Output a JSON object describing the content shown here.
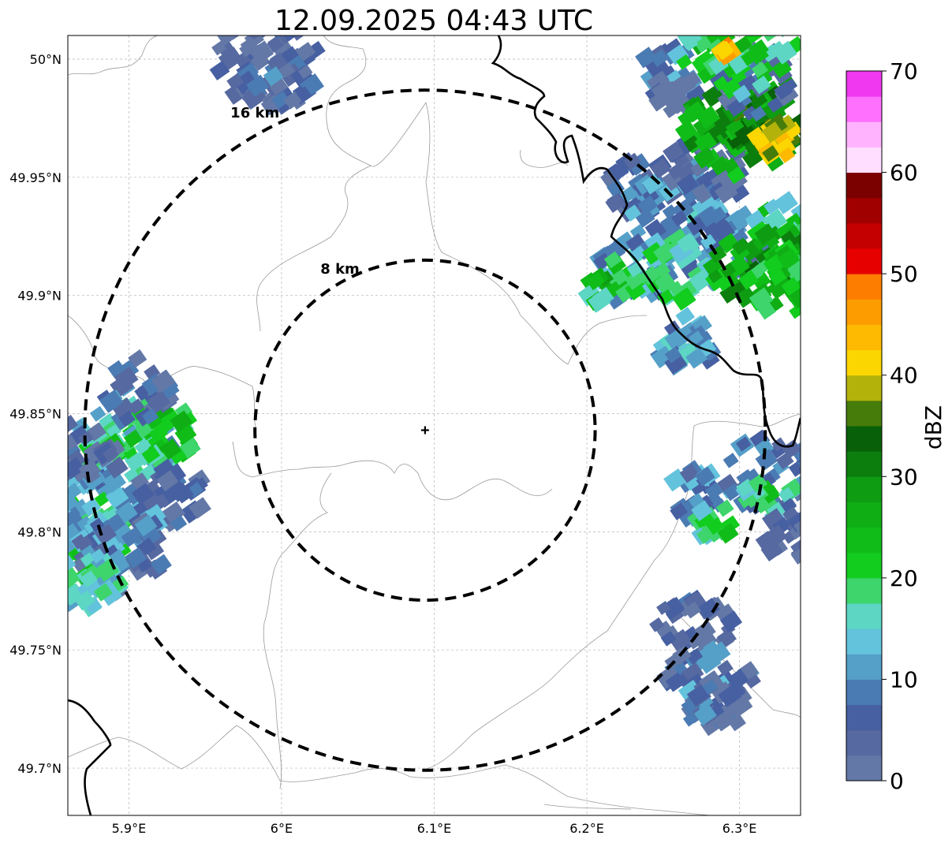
{
  "title": "12.09.2025 04:43 UTC",
  "map": {
    "lon_range": [
      5.86,
      6.34
    ],
    "lat_range": [
      49.68,
      50.01
    ],
    "lon_ticks": [
      {
        "value": 5.9,
        "label": "5.9°E"
      },
      {
        "value": 6.0,
        "label": "6°E"
      },
      {
        "value": 6.1,
        "label": "6.1°E"
      },
      {
        "value": 6.2,
        "label": "6.2°E"
      },
      {
        "value": 6.3,
        "label": "6.3°E"
      }
    ],
    "lat_ticks": [
      {
        "value": 49.7,
        "label": "49.7°N"
      },
      {
        "value": 49.75,
        "label": "49.75°N"
      },
      {
        "value": 49.8,
        "label": "49.8°N"
      },
      {
        "value": 49.85,
        "label": "49.85°N"
      },
      {
        "value": 49.9,
        "label": "49.9°N"
      },
      {
        "value": 49.95,
        "label": "49.95°N"
      },
      {
        "value": 50.0,
        "label": "50°N"
      }
    ],
    "center": {
      "lon": 6.094,
      "lat": 49.843
    },
    "rings": [
      {
        "radius_km": 8,
        "label": "8 km"
      },
      {
        "radius_km": 16,
        "label": "16 km"
      }
    ],
    "precip_cells": [
      {
        "lon": 5.89,
        "lat": 49.835,
        "dbz": 18,
        "size": 0.9
      },
      {
        "lon": 5.915,
        "lat": 49.84,
        "dbz": 24,
        "size": 0.7
      },
      {
        "lon": 5.905,
        "lat": 49.86,
        "dbz": 8,
        "size": 0.6
      },
      {
        "lon": 5.925,
        "lat": 49.815,
        "dbz": 7,
        "size": 0.6
      },
      {
        "lon": 5.87,
        "lat": 49.795,
        "dbz": 25,
        "size": 0.9
      },
      {
        "lon": 5.885,
        "lat": 49.805,
        "dbz": 13,
        "size": 0.8
      },
      {
        "lon": 5.895,
        "lat": 49.79,
        "dbz": 9,
        "size": 0.7
      },
      {
        "lon": 5.875,
        "lat": 49.78,
        "dbz": 17,
        "size": 0.6
      },
      {
        "lon": 5.865,
        "lat": 49.83,
        "dbz": 5,
        "size": 0.7
      },
      {
        "lon": 5.99,
        "lat": 50.0,
        "dbz": 6,
        "size": 0.8
      },
      {
        "lon": 6.0,
        "lat": 49.99,
        "dbz": 8,
        "size": 0.5
      },
      {
        "lon": 6.255,
        "lat": 49.995,
        "dbz": 12,
        "size": 0.45
      },
      {
        "lon": 6.26,
        "lat": 49.985,
        "dbz": 5,
        "size": 0.35
      },
      {
        "lon": 6.24,
        "lat": 49.945,
        "dbz": 8,
        "size": 0.6
      },
      {
        "lon": 6.265,
        "lat": 49.935,
        "dbz": 12,
        "size": 0.9
      },
      {
        "lon": 6.28,
        "lat": 49.955,
        "dbz": 6,
        "size": 0.6
      },
      {
        "lon": 6.29,
        "lat": 49.92,
        "dbz": 10,
        "size": 0.7
      },
      {
        "lon": 6.23,
        "lat": 49.91,
        "dbz": 14,
        "size": 0.6
      },
      {
        "lon": 6.215,
        "lat": 49.905,
        "dbz": 24,
        "size": 0.45
      },
      {
        "lon": 6.255,
        "lat": 49.91,
        "dbz": 20,
        "size": 0.6
      },
      {
        "lon": 6.3,
        "lat": 49.97,
        "dbz": 30,
        "size": 0.9
      },
      {
        "lon": 6.32,
        "lat": 49.975,
        "dbz": 33,
        "size": 0.7
      },
      {
        "lon": 6.326,
        "lat": 49.966,
        "dbz": 42,
        "size": 0.35
      },
      {
        "lon": 6.31,
        "lat": 49.99,
        "dbz": 8,
        "size": 0.6
      },
      {
        "lon": 6.3,
        "lat": 50.005,
        "dbz": 23,
        "size": 0.9
      },
      {
        "lon": 6.33,
        "lat": 49.93,
        "dbz": 21,
        "size": 0.5
      },
      {
        "lon": 6.315,
        "lat": 49.913,
        "dbz": 30,
        "size": 0.8
      },
      {
        "lon": 6.33,
        "lat": 49.905,
        "dbz": 26,
        "size": 0.6
      },
      {
        "lon": 6.292,
        "lat": 50.003,
        "dbz": 48,
        "size": 0.12
      },
      {
        "lon": 6.265,
        "lat": 49.88,
        "dbz": 13,
        "size": 0.5
      },
      {
        "lon": 6.275,
        "lat": 49.815,
        "dbz": 12,
        "size": 0.5
      },
      {
        "lon": 6.285,
        "lat": 49.805,
        "dbz": 22,
        "size": 0.35
      },
      {
        "lon": 6.32,
        "lat": 49.825,
        "dbz": 9,
        "size": 0.7
      },
      {
        "lon": 6.32,
        "lat": 49.815,
        "dbz": 21,
        "size": 0.4
      },
      {
        "lon": 6.335,
        "lat": 49.8,
        "dbz": 6,
        "size": 0.5
      },
      {
        "lon": 6.27,
        "lat": 49.76,
        "dbz": 6,
        "size": 0.6
      },
      {
        "lon": 6.28,
        "lat": 49.735,
        "dbz": 10,
        "size": 0.7
      },
      {
        "lon": 6.285,
        "lat": 49.725,
        "dbz": 7,
        "size": 0.5
      }
    ]
  },
  "colorbar": {
    "label": "dBZ",
    "min": 0,
    "max": 70,
    "tick_values": [
      0,
      10,
      20,
      30,
      40,
      50,
      60,
      70
    ],
    "tick_labels": [
      "0",
      "10",
      "20",
      "30",
      "40",
      "50",
      "60",
      "70"
    ],
    "colors": [
      "#6378a6",
      "#5669a0",
      "#4760a2",
      "#4b7bb3",
      "#55a0c8",
      "#63c3dc",
      "#5dd6c4",
      "#3dd56c",
      "#12cc1e",
      "#10bd18",
      "#0fae15",
      "#0e9c12",
      "#0c7e0e",
      "#086108",
      "#467c0a",
      "#b2b20b",
      "#fcd600",
      "#fdba00",
      "#fd9c00",
      "#fd7d00",
      "#e60000",
      "#c40000",
      "#a10000",
      "#7b0000",
      "#ffdeff",
      "#ffb3ff",
      "#ff70ff",
      "#ef38ef"
    ]
  }
}
